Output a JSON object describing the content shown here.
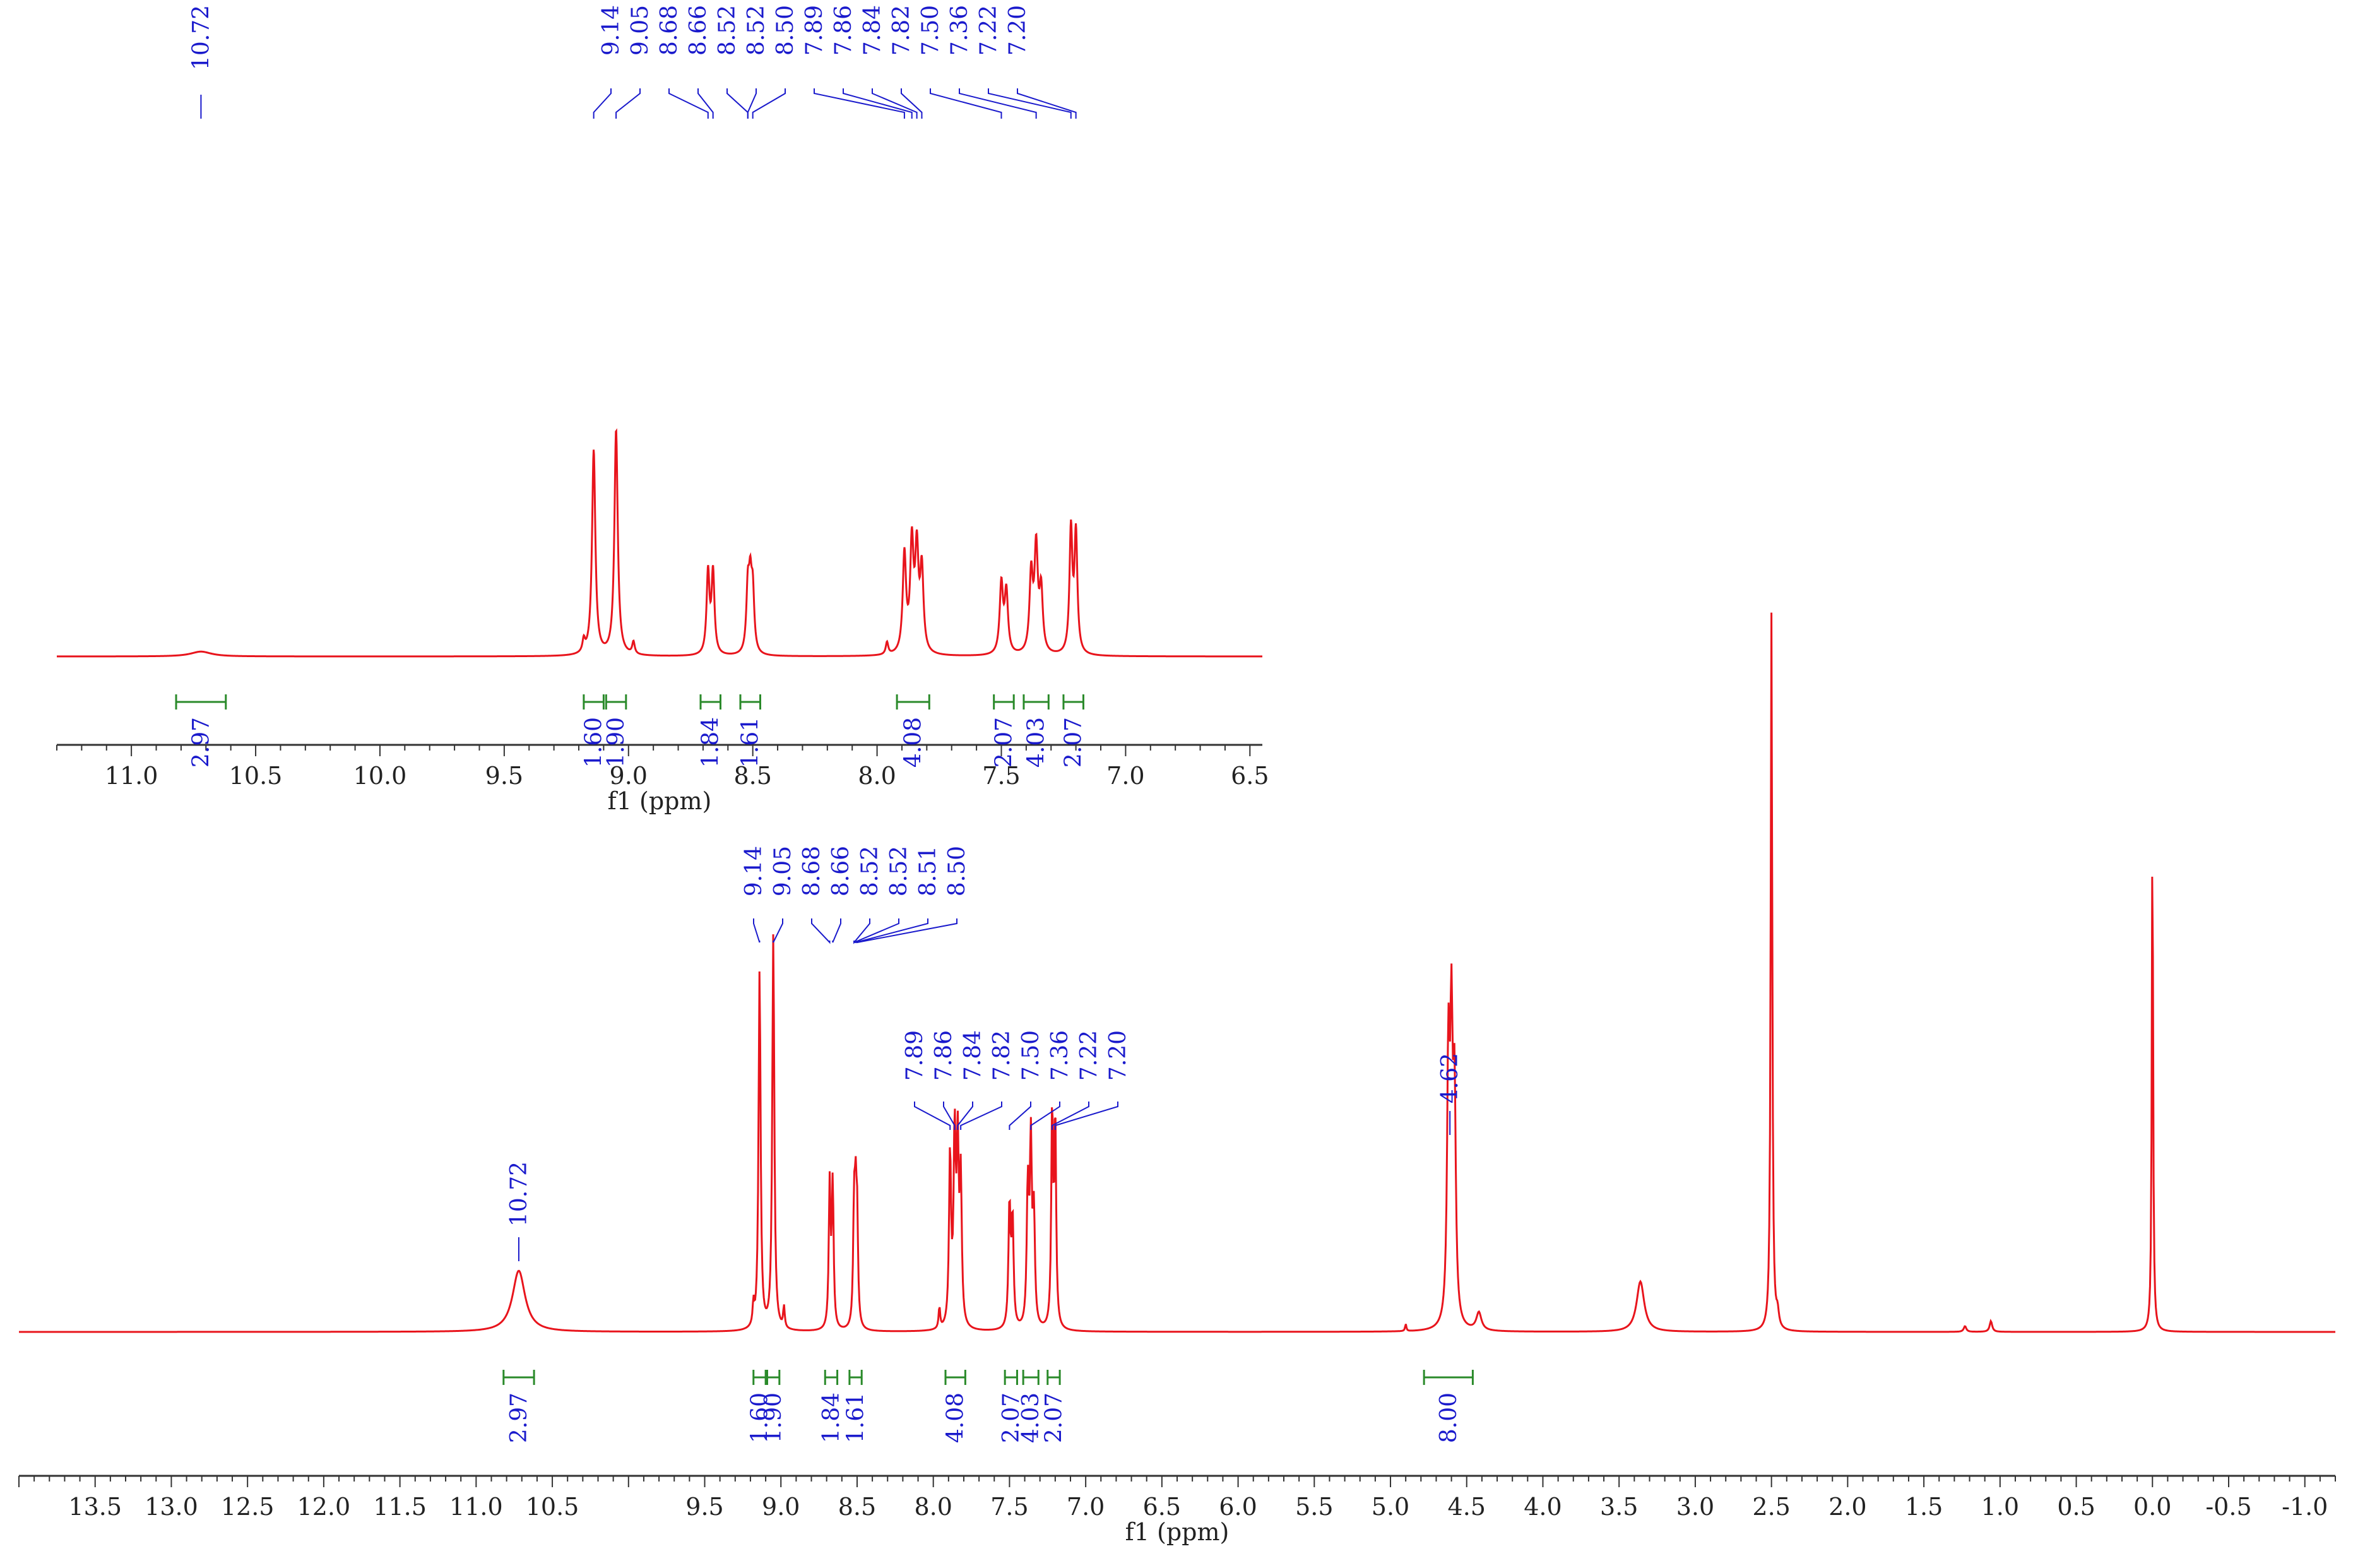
{
  "chart_data": [
    {
      "type": "line",
      "name": "full-spectrum",
      "xlabel": "f1 (ppm)",
      "x_reversed": true,
      "xlim": [
        14.0,
        -1.2
      ],
      "ylim": [
        0,
        100
      ],
      "tick_labels": [
        "13.5",
        "13.0",
        "12.5",
        "12.0",
        "11.5",
        "11.0",
        "10.5",
        "9.5",
        "9.0",
        "8.5",
        "8.0",
        "7.5",
        "7.0",
        "6.5",
        "6.0",
        "5.5",
        "5.0",
        "4.5",
        "4.0",
        "3.5",
        "3.0",
        "2.5",
        "2.0",
        "1.5",
        "1.0",
        "0.5",
        "0.0",
        "-0.5",
        "-1.0"
      ],
      "tick_values": [
        13.5,
        13.0,
        12.5,
        12.0,
        11.5,
        11.0,
        10.5,
        9.5,
        9.0,
        8.5,
        8.0,
        7.5,
        7.0,
        6.5,
        6.0,
        5.5,
        5.0,
        4.5,
        4.0,
        3.5,
        3.0,
        2.5,
        2.0,
        1.5,
        1.0,
        0.5,
        0.0,
        -0.5,
        -1.0
      ],
      "line_color": "#e8141c",
      "peaks": [
        {
          "ppm": 10.72,
          "height": 8.5,
          "width": 0.05
        },
        {
          "ppm": 9.14,
          "height": 50,
          "width": 0.008
        },
        {
          "ppm": 9.05,
          "height": 55,
          "width": 0.008
        },
        {
          "ppm": 8.68,
          "height": 20,
          "width": 0.007
        },
        {
          "ppm": 8.66,
          "height": 20,
          "width": 0.007
        },
        {
          "ppm": 8.52,
          "height": 15,
          "width": 0.007
        },
        {
          "ppm": 8.51,
          "height": 15,
          "width": 0.007
        },
        {
          "ppm": 8.5,
          "height": 14,
          "width": 0.007
        },
        {
          "ppm": 7.89,
          "height": 24,
          "width": 0.008
        },
        {
          "ppm": 7.86,
          "height": 26,
          "width": 0.008
        },
        {
          "ppm": 7.84,
          "height": 24,
          "width": 0.008
        },
        {
          "ppm": 7.82,
          "height": 20,
          "width": 0.008
        },
        {
          "ppm": 7.5,
          "height": 17,
          "width": 0.008
        },
        {
          "ppm": 7.48,
          "height": 15,
          "width": 0.008
        },
        {
          "ppm": 7.38,
          "height": 19,
          "width": 0.008
        },
        {
          "ppm": 7.36,
          "height": 25,
          "width": 0.008
        },
        {
          "ppm": 7.34,
          "height": 15,
          "width": 0.008
        },
        {
          "ppm": 7.22,
          "height": 30,
          "width": 0.007
        },
        {
          "ppm": 7.2,
          "height": 29,
          "width": 0.007
        },
        {
          "ppm": 4.62,
          "height": 36,
          "width": 0.01
        },
        {
          "ppm": 4.6,
          "height": 38,
          "width": 0.01
        },
        {
          "ppm": 4.58,
          "height": 30,
          "width": 0.01
        },
        {
          "ppm": 4.42,
          "height": 2.5,
          "width": 0.02
        },
        {
          "ppm": 3.36,
          "height": 7,
          "width": 0.03
        },
        {
          "ppm": 2.5,
          "height": 100,
          "width": 0.006
        },
        {
          "ppm": 2.46,
          "height": 2,
          "width": 0.01
        },
        {
          "ppm": 1.06,
          "height": 1.5,
          "width": 0.01
        },
        {
          "ppm": 1.23,
          "height": 0.8,
          "width": 0.01
        },
        {
          "ppm": 0.0,
          "height": 71,
          "width": 0.005
        },
        {
          "ppm": 4.9,
          "height": 1,
          "width": 0.005
        },
        {
          "ppm": 9.18,
          "height": 3,
          "width": 0.006
        },
        {
          "ppm": 8.98,
          "height": 3,
          "width": 0.006
        },
        {
          "ppm": 7.96,
          "height": 3,
          "width": 0.006
        }
      ],
      "peak_labels_groups": [
        {
          "labels": [
            "10.72"
          ],
          "anchor_ppm": [
            10.72
          ]
        },
        {
          "labels": [
            "9.14",
            "9.05",
            "8.68",
            "8.66",
            "8.52",
            "8.52",
            "8.51",
            "8.50"
          ],
          "anchor_ppm": [
            9.14,
            9.05,
            8.68,
            8.66,
            8.52,
            8.52,
            8.51,
            8.5
          ]
        },
        {
          "labels": [
            "7.89",
            "7.86",
            "7.84",
            "7.82",
            "7.50",
            "7.36",
            "7.22",
            "7.20"
          ],
          "anchor_ppm": [
            7.89,
            7.86,
            7.84,
            7.82,
            7.5,
            7.36,
            7.22,
            7.2
          ]
        },
        {
          "labels": [
            "4.62"
          ],
          "anchor_ppm": [
            4.61
          ]
        }
      ],
      "integrals": [
        {
          "from": 10.82,
          "to": 10.62,
          "value": "2.97"
        },
        {
          "from": 9.18,
          "to": 9.1,
          "value": "1.60"
        },
        {
          "from": 9.09,
          "to": 9.01,
          "value": "1.90"
        },
        {
          "from": 8.71,
          "to": 8.63,
          "value": "1.84"
        },
        {
          "from": 8.55,
          "to": 8.47,
          "value": "1.61"
        },
        {
          "from": 7.92,
          "to": 7.79,
          "value": "4.08"
        },
        {
          "from": 7.53,
          "to": 7.45,
          "value": "2.07"
        },
        {
          "from": 7.41,
          "to": 7.31,
          "value": "4.03"
        },
        {
          "from": 7.25,
          "to": 7.17,
          "value": "2.07"
        },
        {
          "from": 4.78,
          "to": 4.46,
          "value": "8.00"
        }
      ]
    },
    {
      "type": "line",
      "name": "inset-expansion",
      "xlabel": "f1 (ppm)",
      "x_reversed": true,
      "xlim": [
        11.3,
        6.45
      ],
      "ylim": [
        0,
        100
      ],
      "tick_labels": [
        "11.0",
        "10.5",
        "10.0",
        "9.5",
        "9.0",
        "8.5",
        "8.0",
        "7.5",
        "7.0",
        "6.5"
      ],
      "tick_values": [
        11.0,
        10.5,
        10.0,
        9.5,
        9.0,
        8.5,
        8.0,
        7.5,
        7.0,
        6.5
      ],
      "line_color": "#e8141c",
      "peak_labels": [
        "10.72",
        "9.14",
        "9.05",
        "8.68",
        "8.66",
        "8.52",
        "8.52",
        "8.50",
        "7.89",
        "7.86",
        "7.84",
        "7.82",
        "7.50",
        "7.36",
        "7.22",
        "7.20"
      ],
      "peak_label_ppm": [
        10.72,
        9.14,
        9.05,
        8.68,
        8.66,
        8.52,
        8.52,
        8.5,
        7.89,
        7.86,
        7.84,
        7.82,
        7.5,
        7.36,
        7.22,
        7.2
      ],
      "integrals": [
        {
          "from": 10.82,
          "to": 10.62,
          "value": "2.97"
        },
        {
          "from": 9.18,
          "to": 9.1,
          "value": "1.60"
        },
        {
          "from": 9.09,
          "to": 9.01,
          "value": "1.90"
        },
        {
          "from": 8.71,
          "to": 8.63,
          "value": "1.84"
        },
        {
          "from": 8.55,
          "to": 8.47,
          "value": "1.61"
        },
        {
          "from": 7.92,
          "to": 7.79,
          "value": "4.08"
        },
        {
          "from": 7.53,
          "to": 7.45,
          "value": "2.07"
        },
        {
          "from": 7.41,
          "to": 7.31,
          "value": "4.03"
        },
        {
          "from": 7.25,
          "to": 7.17,
          "value": "2.07"
        }
      ]
    }
  ]
}
